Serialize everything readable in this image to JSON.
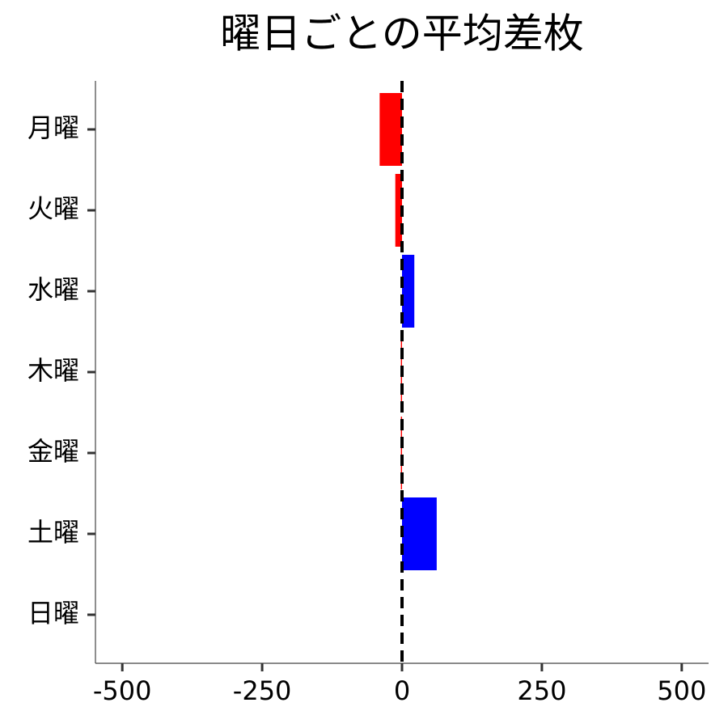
{
  "chart_data": {
    "type": "barh",
    "title": "曜日ごとの平均差枚",
    "categories": [
      "月曜",
      "火曜",
      "水曜",
      "木曜",
      "金曜",
      "土曜",
      "日曜"
    ],
    "values": [
      -40,
      -12,
      22,
      -2,
      -2,
      62,
      0
    ],
    "colors": [
      "#ff0000",
      "#ff0000",
      "#0000ff",
      "#ff0000",
      "#ff0000",
      "#0000ff",
      "#0000ff"
    ],
    "xlim": [
      -548,
      548
    ],
    "xticks": [
      -500,
      -250,
      0,
      250,
      500
    ],
    "grid": false
  }
}
